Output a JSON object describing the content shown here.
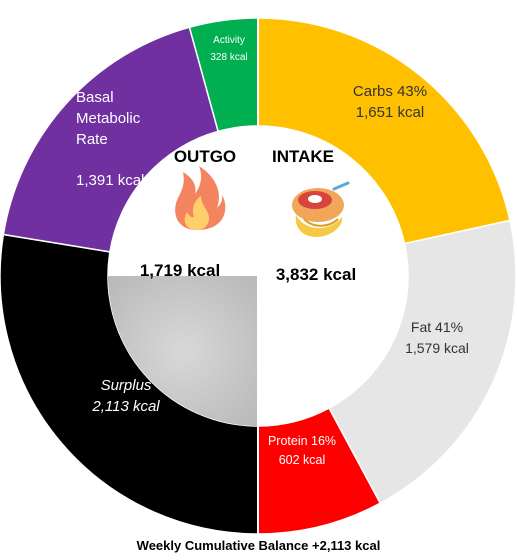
{
  "chart_data": {
    "type": "pie",
    "title": "Weekly Cumulative Balance +2,113 kcal",
    "outgo": {
      "title": "OUTGO",
      "total": "1,719 kcal",
      "icon": "fire-icon",
      "segments": [
        {
          "name": "Basal Metabolic Rate",
          "lines": [
            "Basal",
            "Metabolic",
            "Rate"
          ],
          "value_label": "1,391 kcal",
          "kcal": 1391,
          "color": "#7030a0"
        },
        {
          "name": "Activity",
          "lines": [
            "Activity"
          ],
          "value_label": "328 kcal",
          "kcal": 328,
          "color": "#00b050"
        },
        {
          "name": "Surplus",
          "lines": [
            "Surplus"
          ],
          "value_label": "2,113 kcal",
          "kcal": 2113,
          "color": "#000000"
        }
      ]
    },
    "intake": {
      "title": "INTAKE",
      "total": "3,832 kcal",
      "icon": "food-plate-icon",
      "segments": [
        {
          "name": "Carbs",
          "lines": [
            "Carbs 43%"
          ],
          "value_label": "1,651 kcal",
          "kcal": 1651,
          "percent": 43,
          "color": "#ffc000"
        },
        {
          "name": "Fat",
          "lines": [
            "Fat 41%"
          ],
          "value_label": "1,579 kcal",
          "kcal": 1579,
          "percent": 41,
          "color": "#e6e6e6"
        },
        {
          "name": "Protein",
          "lines": [
            "Protein 16%"
          ],
          "value_label": "602 kcal",
          "kcal": 602,
          "percent": 16,
          "color": "#ff0000"
        }
      ]
    }
  }
}
